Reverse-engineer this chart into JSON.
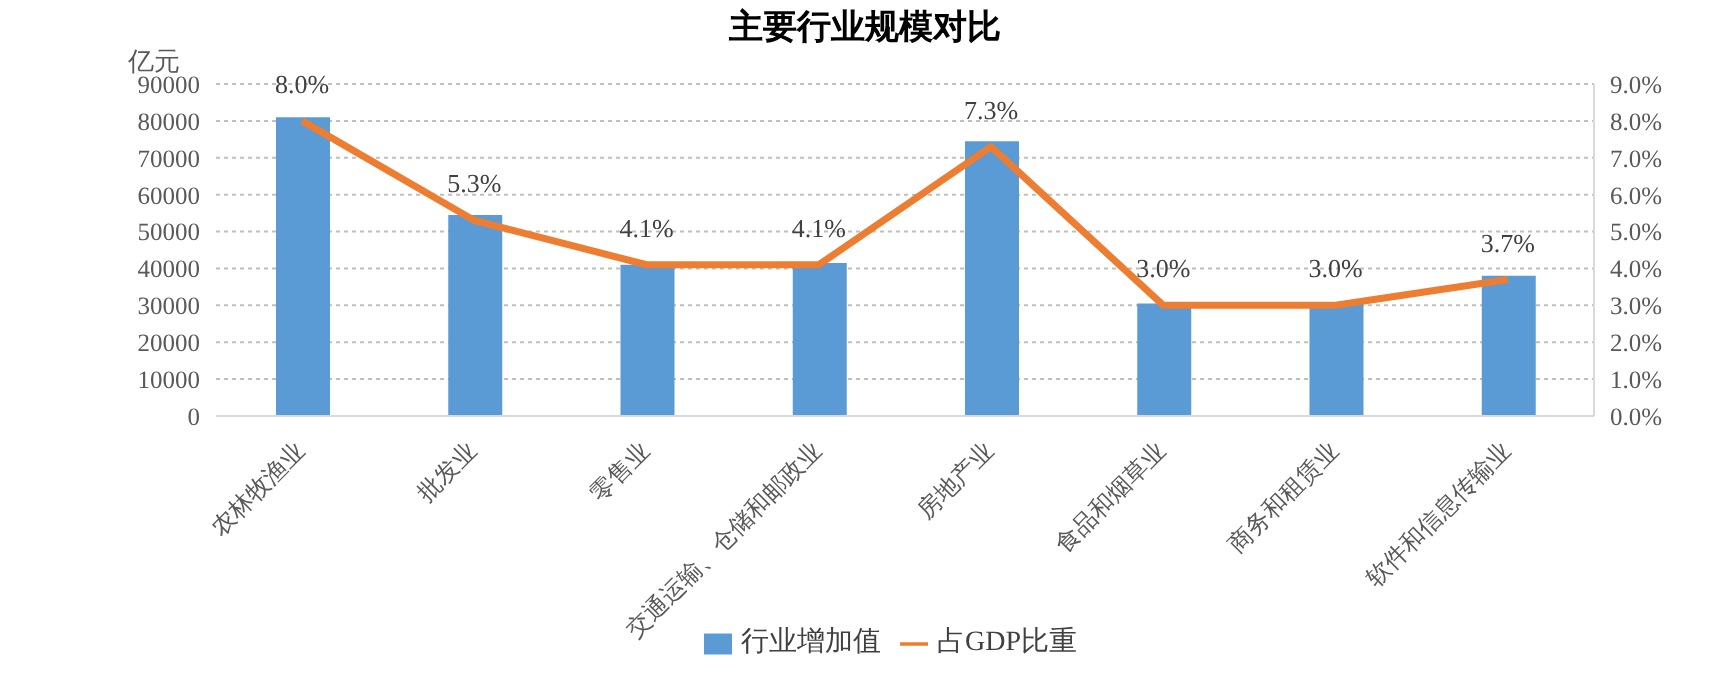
{
  "chart_data": {
    "type": "bar",
    "title": "主要行业规模对比",
    "ylabel": "亿元",
    "categories": [
      "农林牧渔业",
      "批发业",
      "零售业",
      "交通运输、仓储和邮政业",
      "房地产业",
      "食品和烟草业",
      "商务和租赁业",
      "软件和信息传输业"
    ],
    "series": [
      {
        "name": "行业增加值",
        "color": "#5b9bd5",
        "values": [
          81000,
          54500,
          41000,
          41500,
          74500,
          30500,
          30500,
          38000
        ]
      },
      {
        "name": "占GDP比重",
        "type": "line",
        "axis": "y2",
        "color": "#ed7d31",
        "values": [
          8.0,
          5.3,
          4.1,
          4.1,
          7.3,
          3.0,
          3.0,
          3.7
        ],
        "value_labels": [
          "8.0%",
          "5.3%",
          "4.1%",
          "4.1%",
          "7.3%",
          "3.0%",
          "3.0%",
          "3.7%"
        ]
      }
    ],
    "ylim": [
      0,
      90000
    ],
    "yticks": [
      0,
      10000,
      20000,
      30000,
      40000,
      50000,
      60000,
      70000,
      80000,
      90000
    ],
    "y2lim": [
      0,
      9
    ],
    "y2ticks": [
      {
        "value": 0,
        "label": "0.0%"
      },
      {
        "value": 1,
        "label": "1.0%"
      },
      {
        "value": 2,
        "label": "2.0%"
      },
      {
        "value": 3,
        "label": "3.0%"
      },
      {
        "value": 4,
        "label": "4.0%"
      },
      {
        "value": 5,
        "label": "5.0%"
      },
      {
        "value": 6,
        "label": "6.0%"
      },
      {
        "value": 7,
        "label": "7.0%"
      },
      {
        "value": 8,
        "label": "8.0%"
      },
      {
        "value": 9,
        "label": "9.0%"
      }
    ],
    "grid": "y",
    "legend": "bottom",
    "marker": "none",
    "line_style": "solid"
  }
}
